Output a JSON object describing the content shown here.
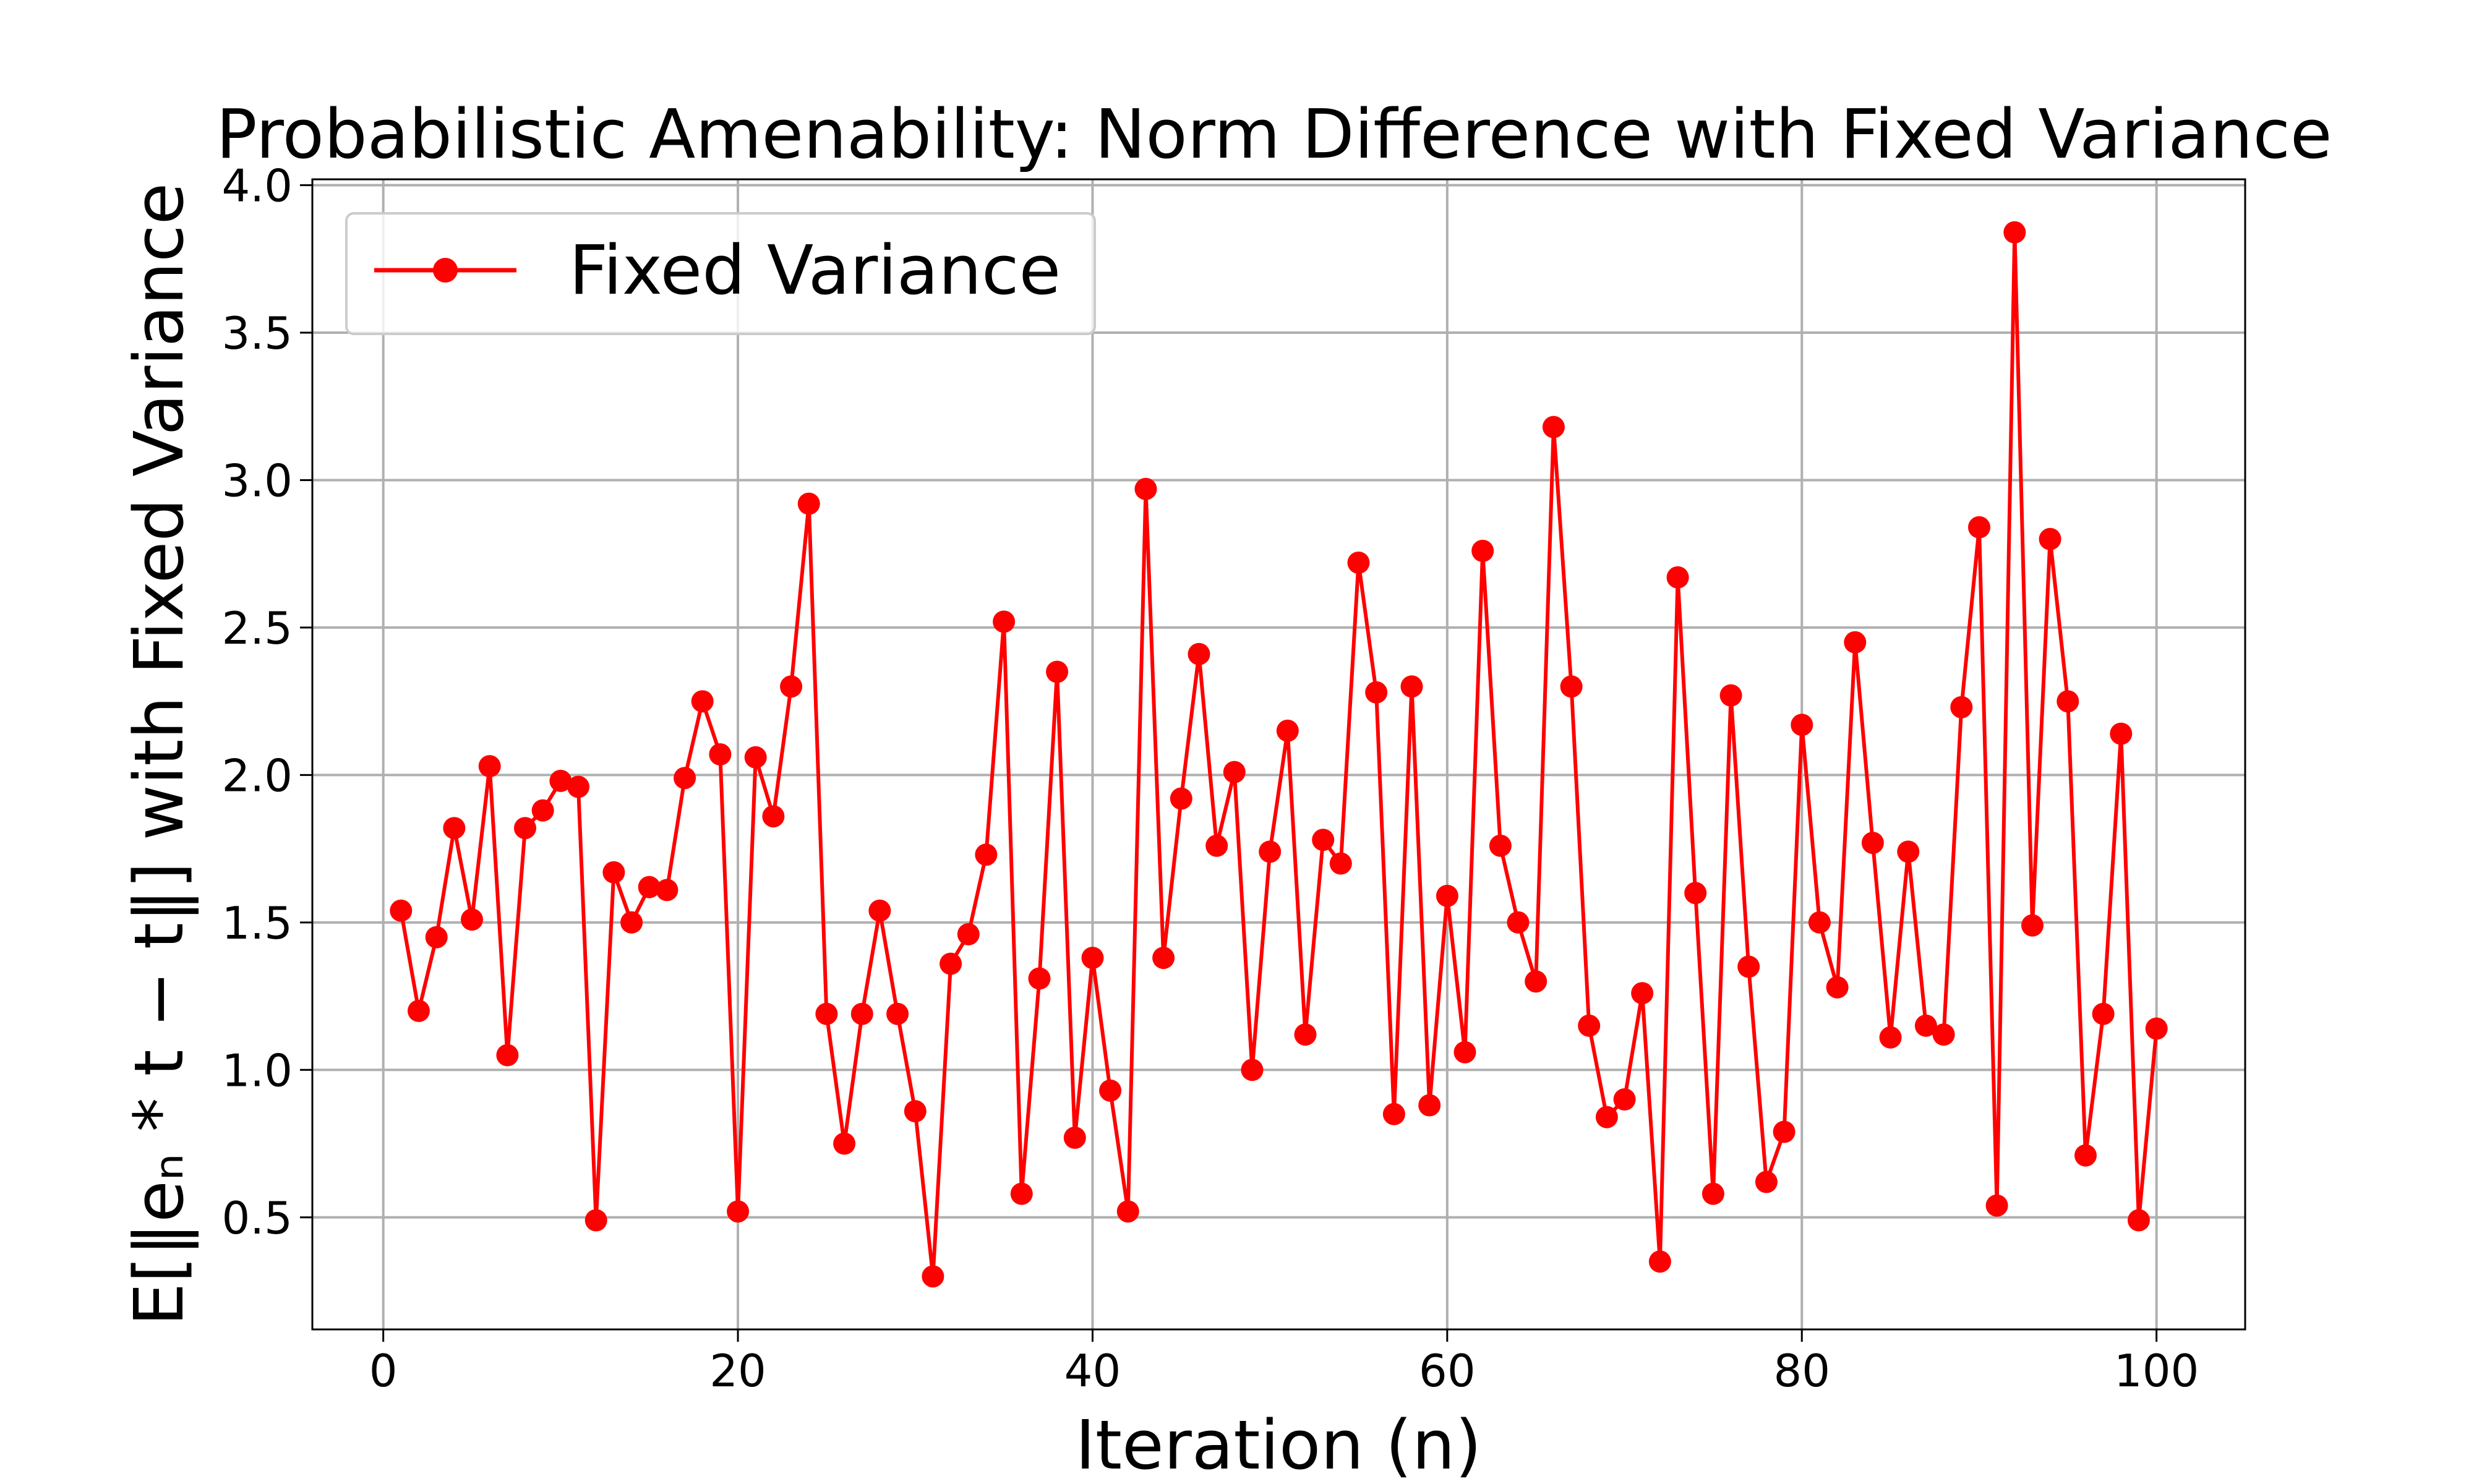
{
  "chart_data": {
    "type": "line",
    "title": "Probabilistic Amenability: Norm Difference with Fixed Variance",
    "xlabel": "Iteration (n)",
    "ylabel": "E[‖eₙ * t − t‖] with Fixed Variance",
    "xlim": [
      -4,
      105
    ],
    "ylim": [
      0.12,
      4.02
    ],
    "xticks": [
      0,
      20,
      40,
      60,
      80,
      100
    ],
    "xtick_labels": [
      "0",
      "20",
      "40",
      "60",
      "80",
      "100"
    ],
    "yticks": [
      0.5,
      1.0,
      1.5,
      2.0,
      2.5,
      3.0,
      3.5,
      4.0
    ],
    "ytick_labels": [
      "0.5",
      "1.0",
      "1.5",
      "2.0",
      "2.5",
      "3.0",
      "3.5",
      "4.0"
    ],
    "grid": true,
    "legend_position": "top-left",
    "series": [
      {
        "name": "Fixed Variance",
        "color": "#ff0000",
        "marker": "circle",
        "x": [
          1,
          2,
          3,
          4,
          5,
          6,
          7,
          8,
          9,
          10,
          11,
          12,
          13,
          14,
          15,
          16,
          17,
          18,
          19,
          20,
          21,
          22,
          23,
          24,
          25,
          26,
          27,
          28,
          29,
          30,
          31,
          32,
          33,
          34,
          35,
          36,
          37,
          38,
          39,
          40,
          41,
          42,
          43,
          44,
          45,
          46,
          47,
          48,
          49,
          50,
          51,
          52,
          53,
          54,
          55,
          56,
          57,
          58,
          59,
          60,
          61,
          62,
          63,
          64,
          65,
          66,
          67,
          68,
          69,
          70,
          71,
          72,
          73,
          74,
          75,
          76,
          77,
          78,
          79,
          80,
          81,
          82,
          83,
          84,
          85,
          86,
          87,
          88,
          89,
          90,
          91,
          92,
          93,
          94,
          95,
          96,
          97,
          98,
          99,
          100
        ],
        "y": [
          1.54,
          1.2,
          1.45,
          1.82,
          1.51,
          2.03,
          1.05,
          1.82,
          1.88,
          1.98,
          1.96,
          0.49,
          1.67,
          1.5,
          1.62,
          1.61,
          1.99,
          2.25,
          2.07,
          0.52,
          2.06,
          1.86,
          2.3,
          2.92,
          1.19,
          0.75,
          1.19,
          1.54,
          1.19,
          0.86,
          0.3,
          1.36,
          1.46,
          1.73,
          2.52,
          0.58,
          1.31,
          2.35,
          0.77,
          1.38,
          0.93,
          0.52,
          2.97,
          1.38,
          1.92,
          2.41,
          1.76,
          2.01,
          1.0,
          1.74,
          2.15,
          1.12,
          1.78,
          1.7,
          2.72,
          2.28,
          0.85,
          2.3,
          0.88,
          1.59,
          1.06,
          2.76,
          1.76,
          1.5,
          1.3,
          3.18,
          2.3,
          1.15,
          0.84,
          0.9,
          1.26,
          0.35,
          2.67,
          1.6,
          0.58,
          2.27,
          1.35,
          0.62,
          0.79,
          2.17,
          1.5,
          1.28,
          2.45,
          1.77,
          1.11,
          1.74,
          1.15,
          1.12,
          2.23,
          2.84,
          0.54,
          3.84,
          1.49,
          2.8,
          2.25,
          0.71,
          1.19,
          2.14,
          0.49,
          1.14
        ]
      }
    ]
  }
}
